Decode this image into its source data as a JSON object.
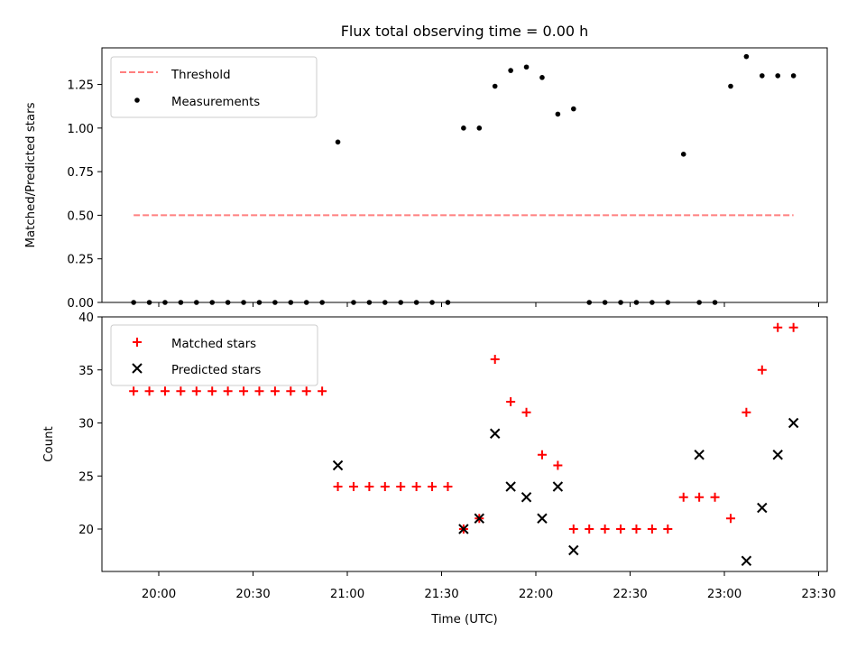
{
  "chart_data": [
    {
      "type": "scatter",
      "title": "Flux total observing time = 0.00 h",
      "xlabel": "",
      "ylabel": "Matched/Predicted stars",
      "ylim": [
        0,
        1.46
      ],
      "yticks": [
        "0.00",
        "0.25",
        "0.50",
        "0.75",
        "1.00",
        "1.25"
      ],
      "legend_position": "top-left",
      "series": [
        {
          "name": "Threshold",
          "style": "dashed-line",
          "color": "#ff7f7f",
          "x": [
            "19:52",
            "23:22"
          ],
          "values": [
            0.5,
            0.5
          ]
        },
        {
          "name": "Measurements",
          "style": "dot",
          "color": "#000000",
          "x": [
            "19:52",
            "19:57",
            "20:02",
            "20:07",
            "20:12",
            "20:17",
            "20:22",
            "20:27",
            "20:32",
            "20:37",
            "20:42",
            "20:47",
            "20:52",
            "20:57",
            "21:02",
            "21:07",
            "21:12",
            "21:17",
            "21:22",
            "21:27",
            "21:32",
            "21:37",
            "21:42",
            "21:47",
            "21:52",
            "21:57",
            "22:02",
            "22:07",
            "22:12",
            "22:17",
            "22:22",
            "22:27",
            "22:32",
            "22:37",
            "22:42",
            "22:47",
            "22:52",
            "22:57",
            "23:02",
            "23:07",
            "23:12",
            "23:17",
            "23:22"
          ],
          "values": [
            0,
            0,
            0,
            0,
            0,
            0,
            0,
            0,
            0,
            0,
            0,
            0,
            0,
            0.92,
            0,
            0,
            0,
            0,
            0,
            0,
            0,
            1.0,
            1.0,
            1.24,
            1.33,
            1.35,
            1.29,
            1.08,
            1.11,
            0,
            0,
            0,
            0,
            0,
            0,
            0.85,
            0,
            0,
            1.24,
            1.41,
            1.3,
            1.3,
            1.3
          ]
        }
      ]
    },
    {
      "type": "scatter",
      "title": "",
      "xlabel": "Time (UTC)",
      "ylabel": "Count",
      "ylim": [
        16,
        40
      ],
      "yticks": [
        "20",
        "25",
        "30",
        "35",
        "40"
      ],
      "xticks": [
        "20:00",
        "20:30",
        "21:00",
        "21:30",
        "22:00",
        "22:30",
        "23:00",
        "23:30"
      ],
      "legend_position": "top-left",
      "series": [
        {
          "name": "Matched stars",
          "style": "plus",
          "color": "#ff0000",
          "x": [
            "19:52",
            "19:57",
            "20:02",
            "20:07",
            "20:12",
            "20:17",
            "20:22",
            "20:27",
            "20:32",
            "20:37",
            "20:42",
            "20:47",
            "20:52",
            "20:57",
            "21:02",
            "21:07",
            "21:12",
            "21:17",
            "21:22",
            "21:27",
            "21:32",
            "21:37",
            "21:42",
            "21:47",
            "21:52",
            "21:57",
            "22:02",
            "22:07",
            "22:12",
            "22:17",
            "22:22",
            "22:27",
            "22:32",
            "22:37",
            "22:42",
            "22:47",
            "22:52",
            "22:57",
            "23:02",
            "23:07",
            "23:12",
            "23:17",
            "23:22"
          ],
          "values": [
            33,
            33,
            33,
            33,
            33,
            33,
            33,
            33,
            33,
            33,
            33,
            33,
            33,
            24,
            24,
            24,
            24,
            24,
            24,
            24,
            24,
            20,
            21,
            36,
            32,
            31,
            27,
            26,
            20,
            20,
            20,
            20,
            20,
            20,
            20,
            23,
            23,
            23,
            21,
            31,
            35,
            39,
            39
          ]
        },
        {
          "name": "Predicted stars",
          "style": "cross",
          "color": "#000000",
          "x": [
            "20:57",
            "21:37",
            "21:42",
            "21:47",
            "21:52",
            "21:57",
            "22:02",
            "22:07",
            "22:12",
            "22:52",
            "23:07",
            "23:12",
            "23:17",
            "23:22"
          ],
          "values": [
            26,
            20,
            21,
            29,
            24,
            23,
            21,
            24,
            18,
            27,
            17,
            22,
            27,
            30
          ]
        }
      ]
    }
  ]
}
